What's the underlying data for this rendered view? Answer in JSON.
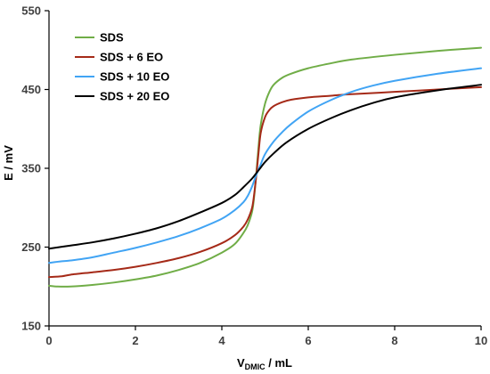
{
  "chart_data": {
    "type": "line",
    "title": "",
    "xlabel": {
      "main": "V",
      "sub": "DMIC",
      "unit": " / mL"
    },
    "ylabel": "E / mV",
    "xlim": [
      0,
      10
    ],
    "ylim": [
      150,
      550
    ],
    "xticks": [
      0,
      2,
      4,
      6,
      8,
      10
    ],
    "yticks": [
      150,
      250,
      350,
      450,
      550
    ],
    "xtick_labels": [
      "0",
      "2",
      "4",
      "6",
      "8",
      "10"
    ],
    "ytick_labels": [
      "150",
      "250",
      "350",
      "450",
      "550"
    ],
    "grid": false,
    "legend_position": "top-left",
    "series": [
      {
        "name": "SDS",
        "color": "#70AD47",
        "x": [
          0,
          0.2,
          0.5,
          1.0,
          1.5,
          2.0,
          2.5,
          3.0,
          3.5,
          4.0,
          4.3,
          4.5,
          4.6,
          4.7,
          4.75,
          4.8,
          4.85,
          4.9,
          5.0,
          5.1,
          5.2,
          5.4,
          5.6,
          6.0,
          6.5,
          7.0,
          8.0,
          9.0,
          10.0
        ],
        "y": [
          201,
          200,
          200,
          202,
          205,
          209,
          214,
          221,
          230,
          243,
          254,
          268,
          278,
          295,
          315,
          345,
          378,
          405,
          432,
          447,
          456,
          465,
          470,
          477,
          483,
          488,
          494,
          499,
          503
        ]
      },
      {
        "name": "SDS + 6 EO",
        "color": "#A52A18",
        "x": [
          0,
          0.3,
          0.5,
          1.0,
          1.5,
          2.0,
          2.5,
          3.0,
          3.5,
          4.0,
          4.3,
          4.5,
          4.6,
          4.7,
          4.75,
          4.8,
          4.85,
          4.9,
          5.0,
          5.1,
          5.2,
          5.4,
          5.6,
          6.0,
          6.5,
          7.0,
          8.0,
          9.0,
          10.0
        ],
        "y": [
          212,
          213,
          215,
          218,
          221,
          225,
          230,
          236,
          244,
          255,
          265,
          276,
          285,
          300,
          318,
          342,
          370,
          395,
          415,
          424,
          429,
          434,
          437,
          440,
          442,
          444,
          447,
          450,
          453
        ]
      },
      {
        "name": "SDS + 10 EO",
        "color": "#41A4F4",
        "x": [
          0,
          0.3,
          0.5,
          1.0,
          1.5,
          2.0,
          2.5,
          3.0,
          3.5,
          4.0,
          4.3,
          4.5,
          4.6,
          4.7,
          4.8,
          4.9,
          5.0,
          5.2,
          5.4,
          5.6,
          6.0,
          6.5,
          7.0,
          7.5,
          8.0,
          9.0,
          10.0
        ],
        "y": [
          230,
          232,
          233,
          237,
          243,
          249,
          256,
          264,
          274,
          286,
          297,
          307,
          315,
          327,
          342,
          355,
          368,
          384,
          396,
          406,
          422,
          436,
          447,
          455,
          461,
          470,
          477
        ]
      },
      {
        "name": "SDS + 20 EO",
        "color": "#000000",
        "x": [
          0,
          0.5,
          1.0,
          1.5,
          2.0,
          2.5,
          3.0,
          3.5,
          4.0,
          4.3,
          4.5,
          4.7,
          4.8,
          4.9,
          5.0,
          5.2,
          5.5,
          6.0,
          6.5,
          7.0,
          7.5,
          8.0,
          9.0,
          10.0
        ],
        "y": [
          248,
          252,
          256,
          261,
          267,
          274,
          283,
          294,
          306,
          316,
          326,
          337,
          344,
          351,
          358,
          369,
          383,
          400,
          413,
          424,
          433,
          440,
          449,
          456
        ]
      }
    ]
  }
}
